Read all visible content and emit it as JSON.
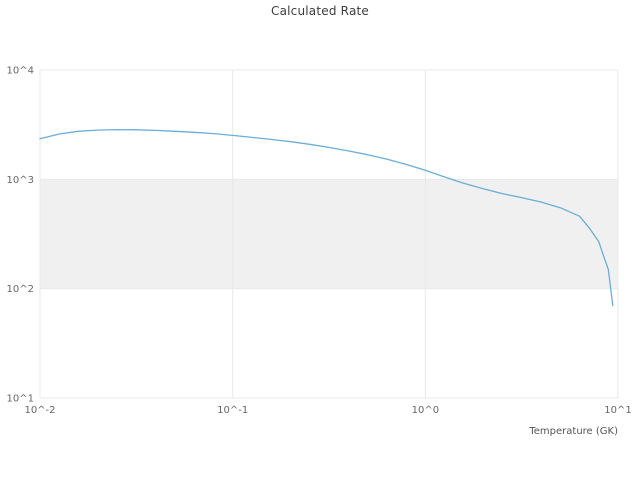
{
  "chart_data": {
    "type": "line",
    "title": "Calculated Rate",
    "xlabel": "Temperature (GK)",
    "ylabel": "",
    "x_scale": "log",
    "y_scale": "log",
    "xlim": [
      0.01,
      10
    ],
    "ylim": [
      10,
      10000
    ],
    "x_ticks": [
      "10^-2",
      "10^-1",
      "10^0",
      "10^1"
    ],
    "x_tick_values": [
      0.01,
      0.1,
      1,
      10
    ],
    "y_ticks": [
      "10^1",
      "10^2",
      "10^3",
      "10^4"
    ],
    "y_tick_values": [
      10,
      100,
      1000,
      10000
    ],
    "grid_on": true,
    "grid_color": "#e8e8e8",
    "band": {
      "y_min": 100,
      "y_max": 1000,
      "color": "#f0f0f0"
    },
    "line_color": "#6aaed6",
    "tick_label_color": "#666666",
    "axis_label_color": "#555555",
    "series": [
      {
        "name": "calculated-rate",
        "x": [
          0.01,
          0.0126,
          0.0158,
          0.02,
          0.0251,
          0.0316,
          0.0398,
          0.0501,
          0.0631,
          0.0794,
          0.1,
          0.126,
          0.158,
          0.2,
          0.251,
          0.316,
          0.398,
          0.501,
          0.631,
          0.794,
          1.0,
          1.26,
          1.58,
          2.0,
          2.51,
          3.16,
          3.98,
          5.01,
          6.31,
          7.08,
          7.94,
          8.41,
          8.91,
          9.4
        ],
        "y": [
          2350,
          2600,
          2750,
          2820,
          2850,
          2840,
          2800,
          2750,
          2690,
          2620,
          2520,
          2420,
          2320,
          2210,
          2090,
          1960,
          1820,
          1680,
          1530,
          1370,
          1210,
          1050,
          920,
          820,
          740,
          680,
          620,
          550,
          460,
          360,
          270,
          200,
          150,
          70
        ]
      }
    ]
  }
}
